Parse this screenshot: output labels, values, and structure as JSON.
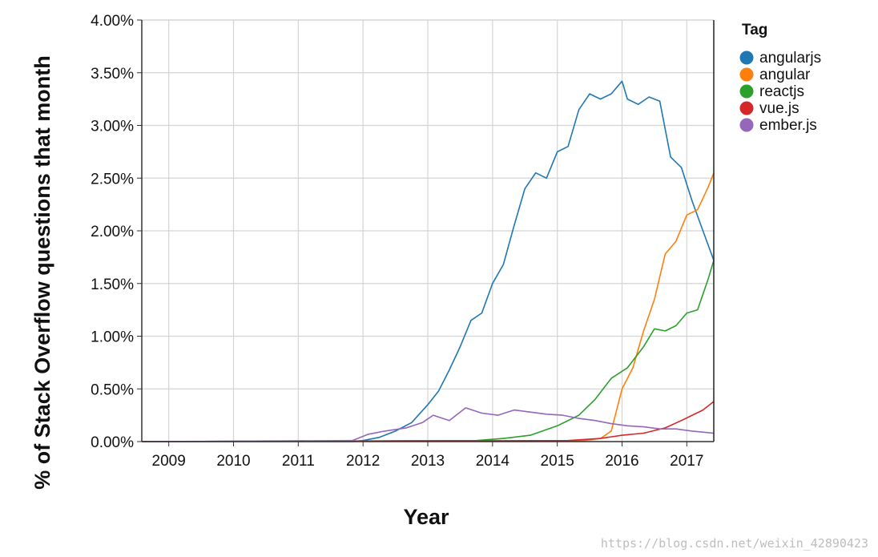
{
  "chart_data": {
    "type": "line",
    "xlabel": "Year",
    "ylabel": "% of Stack Overflow questions that month",
    "x_ticks": [
      "2009",
      "2010",
      "2011",
      "2012",
      "2013",
      "2014",
      "2015",
      "2016",
      "2017"
    ],
    "y_ticks": [
      "0.00%",
      "0.50%",
      "1.00%",
      "1.50%",
      "2.00%",
      "2.50%",
      "3.00%",
      "3.50%",
      "4.00%"
    ],
    "xlim": [
      "2008-08",
      "2017-06"
    ],
    "ylim": [
      0,
      4.0
    ],
    "grid": true,
    "legend": {
      "title": "Tag",
      "placement": "right"
    },
    "series": [
      {
        "name": "angularjs",
        "color": "#1f77b4",
        "points": [
          [
            "2008-08",
            0
          ],
          [
            "2011-11",
            0
          ],
          [
            "2012-01",
            0.01
          ],
          [
            "2012-04",
            0.04
          ],
          [
            "2012-07",
            0.1
          ],
          [
            "2012-10",
            0.18
          ],
          [
            "2013-01",
            0.35
          ],
          [
            "2013-03",
            0.48
          ],
          [
            "2013-05",
            0.68
          ],
          [
            "2013-07",
            0.9
          ],
          [
            "2013-09",
            1.15
          ],
          [
            "2013-11",
            1.22
          ],
          [
            "2014-01",
            1.5
          ],
          [
            "2014-03",
            1.68
          ],
          [
            "2014-05",
            2.05
          ],
          [
            "2014-07",
            2.4
          ],
          [
            "2014-09",
            2.55
          ],
          [
            "2014-11",
            2.5
          ],
          [
            "2015-01",
            2.75
          ],
          [
            "2015-03",
            2.8
          ],
          [
            "2015-05",
            3.15
          ],
          [
            "2015-07",
            3.3
          ],
          [
            "2015-09",
            3.25
          ],
          [
            "2015-11",
            3.3
          ],
          [
            "2016-01",
            3.42
          ],
          [
            "2016-02",
            3.25
          ],
          [
            "2016-04",
            3.2
          ],
          [
            "2016-06",
            3.27
          ],
          [
            "2016-08",
            3.23
          ],
          [
            "2016-10",
            2.7
          ],
          [
            "2016-12",
            2.6
          ],
          [
            "2017-02",
            2.28
          ],
          [
            "2017-04",
            2.0
          ],
          [
            "2017-06",
            1.72
          ]
        ]
      },
      {
        "name": "angular",
        "color": "#ff7f0e",
        "points": [
          [
            "2008-08",
            0
          ],
          [
            "2015-06",
            0.01
          ],
          [
            "2015-09",
            0.03
          ],
          [
            "2015-11",
            0.1
          ],
          [
            "2016-01",
            0.5
          ],
          [
            "2016-03",
            0.7
          ],
          [
            "2016-05",
            1.05
          ],
          [
            "2016-07",
            1.35
          ],
          [
            "2016-09",
            1.78
          ],
          [
            "2016-11",
            1.9
          ],
          [
            "2017-01",
            2.15
          ],
          [
            "2017-03",
            2.2
          ],
          [
            "2017-05",
            2.42
          ],
          [
            "2017-06",
            2.55
          ]
        ]
      },
      {
        "name": "reactjs",
        "color": "#2ca02c",
        "points": [
          [
            "2008-08",
            0
          ],
          [
            "2013-10",
            0.01
          ],
          [
            "2014-03",
            0.03
          ],
          [
            "2014-08",
            0.06
          ],
          [
            "2015-01",
            0.15
          ],
          [
            "2015-05",
            0.25
          ],
          [
            "2015-08",
            0.4
          ],
          [
            "2015-11",
            0.6
          ],
          [
            "2016-02",
            0.7
          ],
          [
            "2016-05",
            0.9
          ],
          [
            "2016-07",
            1.07
          ],
          [
            "2016-09",
            1.05
          ],
          [
            "2016-11",
            1.1
          ],
          [
            "2017-01",
            1.22
          ],
          [
            "2017-03",
            1.25
          ],
          [
            "2017-05",
            1.55
          ],
          [
            "2017-06",
            1.72
          ]
        ]
      },
      {
        "name": "vue.js",
        "color": "#d62728",
        "points": [
          [
            "2008-08",
            0
          ],
          [
            "2015-03",
            0.01
          ],
          [
            "2015-09",
            0.03
          ],
          [
            "2016-01",
            0.06
          ],
          [
            "2016-05",
            0.08
          ],
          [
            "2016-09",
            0.13
          ],
          [
            "2016-12",
            0.2
          ],
          [
            "2017-02",
            0.25
          ],
          [
            "2017-04",
            0.3
          ],
          [
            "2017-06",
            0.38
          ]
        ]
      },
      {
        "name": "ember.js",
        "color": "#9467bd",
        "points": [
          [
            "2008-08",
            0
          ],
          [
            "2011-11",
            0.01
          ],
          [
            "2012-02",
            0.07
          ],
          [
            "2012-05",
            0.1
          ],
          [
            "2012-09",
            0.13
          ],
          [
            "2012-12",
            0.18
          ],
          [
            "2013-02",
            0.25
          ],
          [
            "2013-05",
            0.2
          ],
          [
            "2013-08",
            0.32
          ],
          [
            "2013-11",
            0.27
          ],
          [
            "2014-02",
            0.25
          ],
          [
            "2014-05",
            0.3
          ],
          [
            "2014-08",
            0.28
          ],
          [
            "2014-11",
            0.26
          ],
          [
            "2015-02",
            0.25
          ],
          [
            "2015-05",
            0.22
          ],
          [
            "2015-08",
            0.2
          ],
          [
            "2015-11",
            0.17
          ],
          [
            "2016-02",
            0.15
          ],
          [
            "2016-05",
            0.14
          ],
          [
            "2016-08",
            0.12
          ],
          [
            "2016-11",
            0.12
          ],
          [
            "2017-02",
            0.1
          ],
          [
            "2017-06",
            0.08
          ]
        ]
      }
    ]
  },
  "watermark": "https://blog.csdn.net/weixin_42890423"
}
